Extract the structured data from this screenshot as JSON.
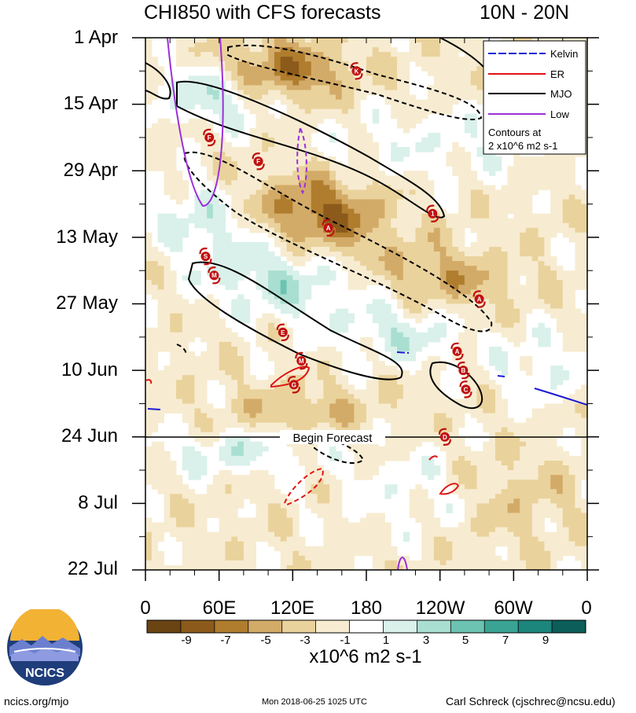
{
  "title": {
    "left": "CHI850 with CFS forecasts",
    "right": "10N - 20N"
  },
  "legend": {
    "items": [
      {
        "label": "Kelvin",
        "color": "#1a1ad6",
        "dashed": true
      },
      {
        "label": "ER",
        "color": "#e01414",
        "dashed": false
      },
      {
        "label": "MJO",
        "color": "#000000",
        "dashed": false
      },
      {
        "label": "Low",
        "color": "#9b30d9",
        "dashed": false
      }
    ],
    "note_line1": "Contours at",
    "note_line2": "2 x10^6 m2 s-1"
  },
  "annotation": {
    "forecast_label": "Begin Forecast"
  },
  "colorbar": {
    "title": "x10^6 m2 s-1",
    "tick_labels": [
      "-9",
      "-7",
      "-5",
      "-3",
      "-1",
      "1",
      "3",
      "5",
      "7",
      "9"
    ],
    "colors": [
      "#6b4414",
      "#8c5a1a",
      "#b07d2e",
      "#d3ab68",
      "#ead29c",
      "#f7ecd1",
      "#ffffff",
      "#d9f1ea",
      "#a9dfd1",
      "#6cc3b2",
      "#3aa394",
      "#1c857c",
      "#0c5e5a"
    ]
  },
  "footer": {
    "left": "ncics.org/mjo",
    "center": "Mon 2018-06-25 1025 UTC",
    "right": "Carl Schreck (cjschrec@ncsu.edu)"
  },
  "logo": {
    "text": "NCICS"
  },
  "chart_data": {
    "type": "heatmap",
    "title": "CHI850 with CFS forecasts",
    "subtitle": "10N - 20N",
    "x_ticks": [
      "0",
      "60E",
      "120E",
      "180",
      "120W",
      "60W",
      "0"
    ],
    "x_tick_values": [
      0,
      60,
      120,
      180,
      240,
      300,
      360
    ],
    "y_ticks": [
      "1 Apr",
      "15 Apr",
      "29 Apr",
      "13 May",
      "27 May",
      "10 Jun",
      "24 Jun",
      "8 Jul",
      "22 Jul"
    ],
    "y_tick_values": [
      "2018-04-01",
      "2018-04-15",
      "2018-04-29",
      "2018-05-13",
      "2018-05-27",
      "2018-06-10",
      "2018-06-24",
      "2018-07-08",
      "2018-07-22"
    ],
    "xlim": [
      0,
      360
    ],
    "ylim": [
      "2018-04-01",
      "2018-07-22"
    ],
    "forecast_start": "2018-06-24",
    "colorbar_levels": [
      -9,
      -7,
      -5,
      -3,
      -1,
      1,
      3,
      5,
      7,
      9
    ],
    "filter_contour_value": "2 x10^6 m2 s-1",
    "storms": [
      {
        "label": "K",
        "lon": 172,
        "date": "2018-04-08"
      },
      {
        "label": "F",
        "lon": 52,
        "date": "2018-04-22"
      },
      {
        "label": "F",
        "lon": 92,
        "date": "2018-04-27"
      },
      {
        "label": "1",
        "lon": 234,
        "date": "2018-05-08"
      },
      {
        "label": "A",
        "lon": 149,
        "date": "2018-05-11"
      },
      {
        "label": "S",
        "lon": 49,
        "date": "2018-05-17"
      },
      {
        "label": "M",
        "lon": 56,
        "date": "2018-05-21"
      },
      {
        "label": "A",
        "lon": 272,
        "date": "2018-05-26"
      },
      {
        "label": "E",
        "lon": 112,
        "date": "2018-06-02"
      },
      {
        "label": "A",
        "lon": 254,
        "date": "2018-06-06"
      },
      {
        "label": "M",
        "lon": 127,
        "date": "2018-06-08"
      },
      {
        "label": "B",
        "lon": 259,
        "date": "2018-06-10"
      },
      {
        "label": "G",
        "lon": 121,
        "date": "2018-06-13"
      },
      {
        "label": "C",
        "lon": 261,
        "date": "2018-06-14"
      },
      {
        "label": "D",
        "lon": 244,
        "date": "2018-06-24"
      }
    ]
  }
}
